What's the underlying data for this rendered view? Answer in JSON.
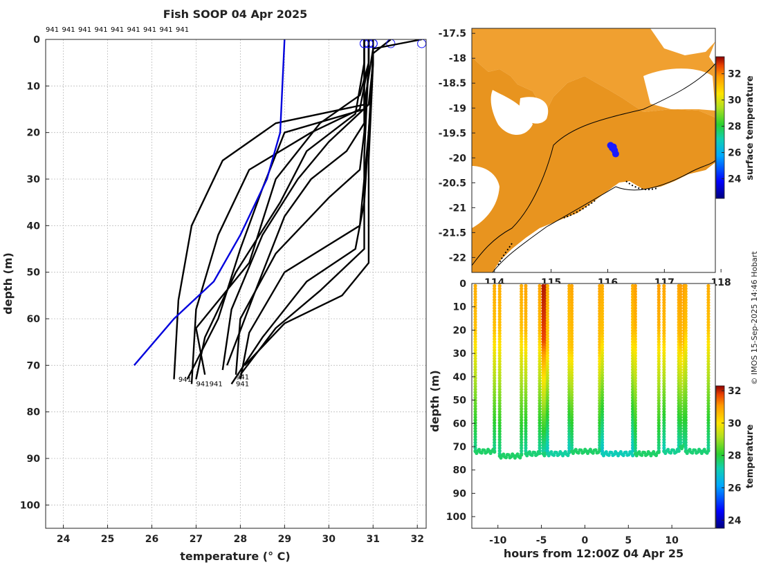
{
  "title": "Fish SOOP 04 Apr 2025",
  "credit": "© IMOS 15-Sep-2025 14:46 Hobart",
  "colors": {
    "profile": "#000000",
    "mean_profile": "#0000dd",
    "surface_marker": "#1a1aff",
    "axis": "#222222"
  },
  "chart_data": [
    {
      "type": "line",
      "name": "temperature-profiles",
      "title": "Fish SOOP 04 Apr 2025",
      "xlabel": "temperature (° C)",
      "ylabel": "depth (m)",
      "xlim": [
        23.6,
        32.2
      ],
      "ylim": [
        105,
        0
      ],
      "xticks": [
        24,
        25,
        26,
        27,
        28,
        29,
        30,
        31,
        32
      ],
      "yticks": [
        0,
        10,
        20,
        30,
        40,
        50,
        60,
        70,
        80,
        90,
        100
      ],
      "grid": true,
      "profile_labels": [
        "941",
        "941",
        "941",
        "941",
        "941",
        "941",
        "941",
        "941",
        "941"
      ],
      "bottom_labels": [
        "941",
        "941",
        "941",
        "941",
        "941"
      ],
      "mean_profile": {
        "temperature": [
          29.0,
          28.9,
          28.6,
          28.0,
          27.4,
          26.5,
          25.6
        ],
        "depth": [
          0,
          20,
          30,
          42,
          52,
          60,
          70
        ]
      },
      "profiles": [
        {
          "temperature": [
            30.8,
            30.8,
            30.8,
            29.0,
            28.5,
            28.0,
            27.5,
            26.8
          ],
          "depth": [
            0,
            5,
            15,
            20,
            32,
            45,
            60,
            73
          ]
        },
        {
          "temperature": [
            30.9,
            30.9,
            30.7,
            29.8,
            28.8,
            28.2,
            27.0,
            27.2
          ],
          "depth": [
            0,
            5,
            12,
            18,
            30,
            48,
            62,
            72
          ]
        },
        {
          "temperature": [
            31.0,
            31.0,
            30.9,
            30.0,
            29.3,
            28.5,
            27.8,
            27.6
          ],
          "depth": [
            0,
            5,
            14,
            22,
            30,
            42,
            58,
            71
          ]
        },
        {
          "temperature": [
            30.8,
            30.8,
            30.6,
            29.5,
            28.9,
            27.9,
            27.2,
            27.0
          ],
          "depth": [
            0,
            5,
            16,
            24,
            35,
            50,
            64,
            73
          ]
        },
        {
          "temperature": [
            30.9,
            30.9,
            30.8,
            30.7,
            30.0,
            28.8,
            28.0,
            27.9
          ],
          "depth": [
            0,
            5,
            20,
            28,
            34,
            46,
            60,
            72
          ]
        },
        {
          "temperature": [
            31.0,
            31.0,
            30.9,
            30.8,
            30.7,
            29.0,
            28.2,
            28.0
          ],
          "depth": [
            0,
            5,
            20,
            30,
            40,
            50,
            63,
            73
          ]
        },
        {
          "temperature": [
            31.4,
            31.0,
            30.9,
            30.8,
            30.6,
            29.5,
            28.5,
            27.8
          ],
          "depth": [
            0,
            3,
            20,
            35,
            45,
            52,
            64,
            74
          ]
        },
        {
          "temperature": [
            30.9,
            30.9,
            30.8,
            30.8,
            30.8,
            29.8,
            28.8,
            28.0
          ],
          "depth": [
            0,
            5,
            25,
            35,
            45,
            54,
            62,
            72
          ]
        },
        {
          "temperature": [
            31.0,
            31.0,
            30.9,
            30.9,
            30.9,
            30.3,
            29.0,
            28.1
          ],
          "depth": [
            0,
            5,
            26,
            38,
            48,
            55,
            61,
            70
          ]
        },
        {
          "temperature": [
            32.1,
            31.0,
            30.8,
            28.8,
            27.6,
            26.9,
            26.6,
            26.5
          ],
          "depth": [
            0,
            2,
            14,
            18,
            26,
            40,
            56,
            73
          ]
        },
        {
          "temperature": [
            30.9,
            30.9,
            30.7,
            29.6,
            28.2,
            27.5,
            27.0,
            26.9
          ],
          "depth": [
            0,
            5,
            15,
            20,
            28,
            42,
            58,
            74
          ]
        },
        {
          "temperature": [
            30.8,
            30.8,
            30.8,
            30.4,
            29.6,
            29.0,
            28.3,
            27.7
          ],
          "depth": [
            0,
            5,
            18,
            24,
            30,
            38,
            55,
            70
          ]
        }
      ]
    },
    {
      "type": "heatmap",
      "name": "surface-temperature-map",
      "xlim": [
        113.6,
        117.9
      ],
      "ylim": [
        -22.3,
        -17.4
      ],
      "xticks": [
        114,
        115,
        116,
        117,
        118
      ],
      "xtick_labels": [
        "114",
        "115",
        "116",
        "117",
        "118"
      ],
      "yticks": [
        -17.5,
        -18,
        -18.5,
        -19,
        -19.5,
        -20,
        -20.5,
        -21,
        -21.5,
        -22
      ],
      "ytick_labels": [
        "-17.5",
        "-18",
        "-18.5",
        "-19",
        "-19.5",
        "-20",
        "-20.5",
        "-21",
        "-21.5",
        "-22"
      ],
      "colorbar": {
        "label": "surface temperature",
        "range": [
          22.5,
          33.3
        ],
        "ticks": [
          24,
          26,
          28,
          30,
          32
        ]
      },
      "track": {
        "lon": [
          116.05,
          116.08,
          116.12,
          116.14,
          116.1
        ],
        "lat": [
          -19.75,
          -19.8,
          -19.85,
          -19.92,
          -19.78
        ]
      }
    },
    {
      "type": "scatter",
      "name": "depth-time-section",
      "xlabel": "hours from 12:00Z 04 Apr 25",
      "ylabel": "depth (m)",
      "xlim": [
        -13,
        15
      ],
      "ylim": [
        105,
        0
      ],
      "xticks": [
        -10,
        -5,
        0,
        5,
        10
      ],
      "yticks": [
        0,
        10,
        20,
        30,
        40,
        50,
        60,
        70,
        80,
        90,
        100
      ],
      "colorbar": {
        "label": "temperature",
        "range": [
          23.5,
          32.3
        ],
        "ticks": [
          24,
          26,
          28,
          30,
          32
        ]
      },
      "casts": [
        {
          "start": -12.6,
          "end": -10.4,
          "bottom": 72,
          "surface_temp": 30.8,
          "bottom_temp": 27.7
        },
        {
          "start": -9.8,
          "end": -7.3,
          "bottom": 74,
          "surface_temp": 30.8,
          "bottom_temp": 27.7
        },
        {
          "start": -6.8,
          "end": -5.2,
          "bottom": 73,
          "surface_temp": 30.9,
          "bottom_temp": 27.6
        },
        {
          "start": -4.8,
          "end": -4.5,
          "bottom": 73,
          "surface_temp": 32.1,
          "bottom_temp": 27.6
        },
        {
          "start": -4.3,
          "end": -1.8,
          "bottom": 73,
          "surface_temp": 30.8,
          "bottom_temp": 27.3
        },
        {
          "start": -1.5,
          "end": 1.7,
          "bottom": 72,
          "surface_temp": 30.9,
          "bottom_temp": 27.7
        },
        {
          "start": 2.0,
          "end": 5.5,
          "bottom": 73,
          "surface_temp": 30.8,
          "bottom_temp": 27.1
        },
        {
          "start": 5.8,
          "end": 8.5,
          "bottom": 73,
          "surface_temp": 31.0,
          "bottom_temp": 27.7
        },
        {
          "start": 9.1,
          "end": 10.8,
          "bottom": 72,
          "surface_temp": 30.9,
          "bottom_temp": 27.4
        },
        {
          "start": 11.0,
          "end": 11.4,
          "bottom": 70,
          "surface_temp": 31.0,
          "bottom_temp": 27.7
        },
        {
          "start": 11.6,
          "end": 14.2,
          "bottom": 72,
          "surface_temp": 30.8,
          "bottom_temp": 27.6
        }
      ]
    }
  ]
}
